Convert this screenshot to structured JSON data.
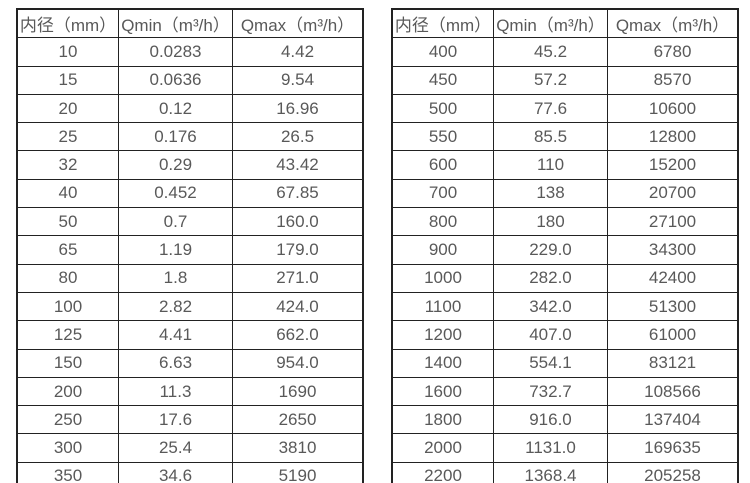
{
  "colors": {
    "background": "#ffffff",
    "border": "#222222",
    "text": "#595959"
  },
  "chart_data": [
    {
      "type": "table",
      "title": "",
      "headers": [
        "内径（mm）",
        "Qmin（m³/h）",
        "Qmax（m³/h）"
      ],
      "rows": [
        [
          "10",
          "0.0283",
          "4.42"
        ],
        [
          "15",
          "0.0636",
          "9.54"
        ],
        [
          "20",
          "0.12",
          "16.96"
        ],
        [
          "25",
          "0.176",
          "26.5"
        ],
        [
          "32",
          "0.29",
          "43.42"
        ],
        [
          "40",
          "0.452",
          "67.85"
        ],
        [
          "50",
          "0.7",
          "160.0"
        ],
        [
          "65",
          "1.19",
          "179.0"
        ],
        [
          "80",
          "1.8",
          "271.0"
        ],
        [
          "100",
          "2.82",
          "424.0"
        ],
        [
          "125",
          "4.41",
          "662.0"
        ],
        [
          "150",
          "6.63",
          "954.0"
        ],
        [
          "200",
          "11.3",
          "1690"
        ],
        [
          "250",
          "17.6",
          "2650"
        ],
        [
          "300",
          "25.4",
          "3810"
        ],
        [
          "350",
          "34.6",
          "5190"
        ]
      ]
    },
    {
      "type": "table",
      "title": "",
      "headers": [
        "内径（mm）",
        "Qmin（m³/h）",
        "Qmax（m³/h）"
      ],
      "rows": [
        [
          "400",
          "45.2",
          "6780"
        ],
        [
          "450",
          "57.2",
          "8570"
        ],
        [
          "500",
          "77.6",
          "10600"
        ],
        [
          "550",
          "85.5",
          "12800"
        ],
        [
          "600",
          "110",
          "15200"
        ],
        [
          "700",
          "138",
          "20700"
        ],
        [
          "800",
          "180",
          "27100"
        ],
        [
          "900",
          "229.0",
          "34300"
        ],
        [
          "1000",
          "282.0",
          "42400"
        ],
        [
          "1100",
          "342.0",
          "51300"
        ],
        [
          "1200",
          "407.0",
          "61000"
        ],
        [
          "1400",
          "554.1",
          "83121"
        ],
        [
          "1600",
          "732.7",
          "108566"
        ],
        [
          "1800",
          "916.0",
          "137404"
        ],
        [
          "2000",
          "1131.0",
          "169635"
        ],
        [
          "2200",
          "1368.4",
          "205258"
        ]
      ]
    }
  ]
}
